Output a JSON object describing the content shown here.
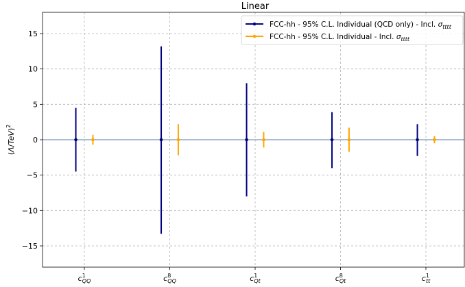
{
  "chart_data": {
    "type": "errorbar",
    "title": "Linear",
    "ylabel_math": {
      "paren_open": "(",
      "lambda": "Λ",
      "slash": "/",
      "unit": "TeV",
      "paren_close": ")",
      "power": "2"
    },
    "ylim": [
      -18,
      18
    ],
    "yticks": [
      -15,
      -10,
      -5,
      0,
      5,
      10,
      15
    ],
    "grid": true,
    "legend_position": "top-right",
    "zero_line": true,
    "categories": [
      {
        "base": "c",
        "sup": "1",
        "sub": "QQ"
      },
      {
        "base": "c",
        "sup": "8",
        "sub": "QQ"
      },
      {
        "base": "c",
        "sup": "1",
        "sub": "Qt"
      },
      {
        "base": "c",
        "sup": "8",
        "sub": "Qt"
      },
      {
        "base": "c",
        "sup": "1",
        "sub": "tt"
      }
    ],
    "series": [
      {
        "legend_prefix": "FCC-hh - 95% C.L. Individual (QCD only) - Incl. ",
        "legend_sigma": "σ",
        "legend_sigma_sub": "tttt",
        "color": "#000080",
        "offset": -0.1,
        "center": [
          0,
          0,
          0,
          0,
          0
        ],
        "low": [
          -4.5,
          -13.3,
          -8.0,
          -4.0,
          -2.3
        ],
        "high": [
          4.5,
          13.2,
          8.0,
          3.9,
          2.2
        ]
      },
      {
        "legend_prefix": "FCC-hh - 95% C.L. Individual - Incl. ",
        "legend_sigma": "σ",
        "legend_sigma_sub": "tttt",
        "color": "#FFA500",
        "offset": 0.1,
        "center": [
          0,
          0,
          0,
          0,
          0
        ],
        "low": [
          -0.7,
          -2.2,
          -1.1,
          -1.7,
          -0.5
        ],
        "high": [
          0.7,
          2.2,
          1.1,
          1.7,
          0.5
        ]
      }
    ]
  }
}
